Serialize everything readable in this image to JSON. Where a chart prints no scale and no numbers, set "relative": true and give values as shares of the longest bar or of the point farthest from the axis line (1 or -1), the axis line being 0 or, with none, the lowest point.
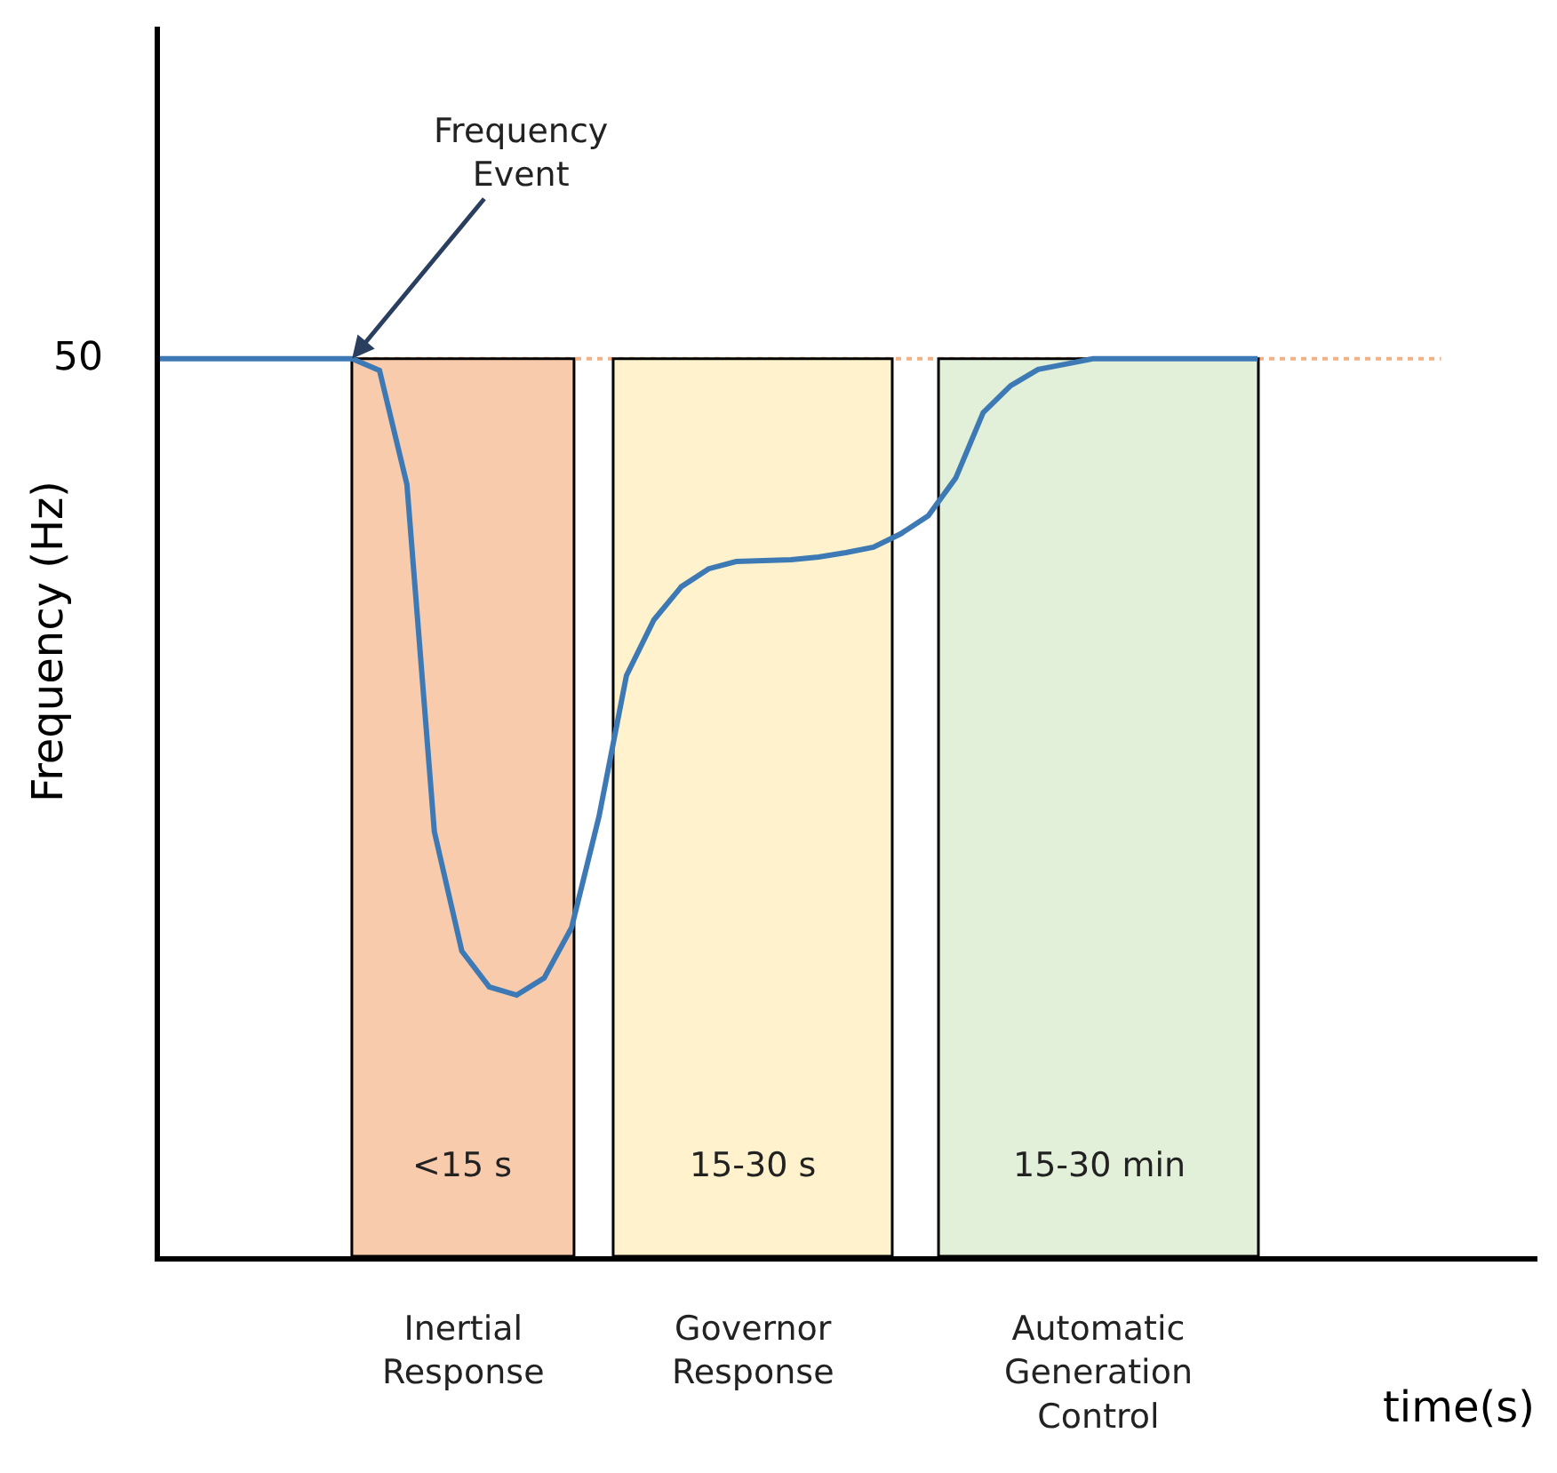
{
  "chart_data": {
    "type": "line",
    "relative": true,
    "xlabel": "time(s)",
    "ylabel": "Frequency (Hz)",
    "categories": [
      null,
      null,
      null,
      null,
      null,
      null,
      null,
      null,
      null,
      null,
      null,
      null,
      null,
      null,
      null,
      null,
      null,
      null,
      null,
      null,
      null,
      null,
      null,
      null,
      null,
      null,
      null,
      null,
      null,
      null,
      null,
      null,
      null,
      null,
      null,
      null,
      null,
      null,
      null,
      null,
      null
    ],
    "series": [
      {
        "color": "#3d7ab5",
        "values": [
          1,
          1,
          1,
          1,
          1,
          1,
          1,
          1,
          0.987,
          0.86,
          0.473,
          0.34,
          0.3,
          0.291,
          0.31,
          0.366,
          0.49,
          0.647,
          0.709,
          0.746,
          0.766,
          0.774,
          0.775,
          0.776,
          0.779,
          0.784,
          0.79,
          0.805,
          0.825,
          0.867,
          0.94,
          0.97,
          0.988,
          0.994,
          1,
          1,
          1,
          1,
          1,
          1,
          1
        ]
      }
    ],
    "tick_labels": false,
    "grid": false,
    "marker": "none",
    "line_style": "solid",
    "ref_lines": [
      {
        "axis": "y",
        "value": 1,
        "color": "#f4b183",
        "line_style": "dotted"
      }
    ],
    "annotations": [
      "Frequency Event",
      "50",
      "<15 s",
      "15-30 s",
      "15-30 min",
      "Inertial Response",
      "Governor Response",
      "Automatic Generation Control"
    ]
  }
}
